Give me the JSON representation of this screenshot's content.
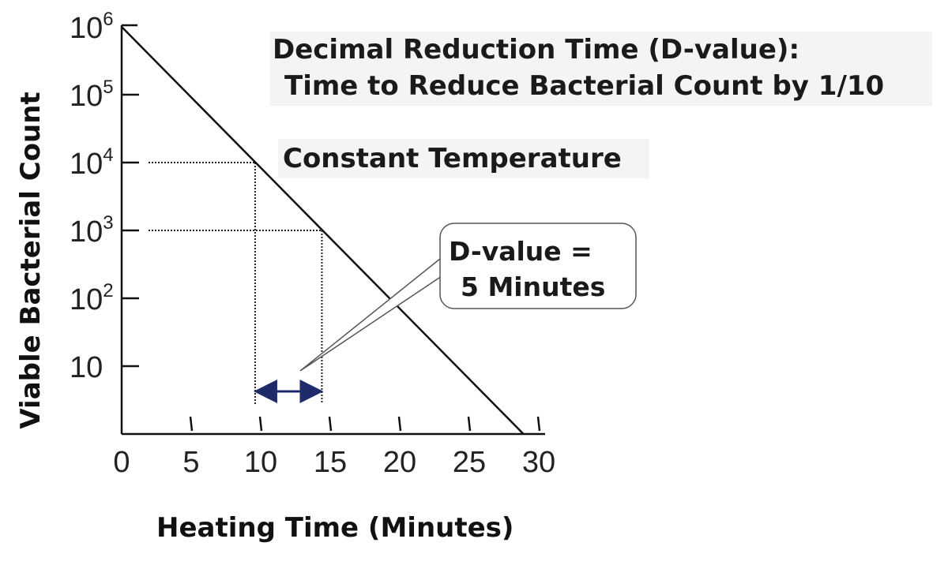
{
  "chart_data": {
    "type": "line",
    "title_line1": "Decimal Reduction Time (D-value):",
    "title_line2": "Time to Reduce Bacterial Count by 1/10",
    "subtitle": "Constant Temperature",
    "xlabel": "Heating Time (Minutes)",
    "ylabel": "Viable Bacterial Count",
    "x_ticks": [
      "0",
      "5",
      "10",
      "15",
      "20",
      "25",
      "30"
    ],
    "x_tick_values": [
      0,
      5,
      10,
      15,
      20,
      25,
      30
    ],
    "y_ticks": [
      {
        "value": 1,
        "base": "10",
        "exp": ""
      },
      {
        "value": 2,
        "base": "10",
        "exp": "2"
      },
      {
        "value": 3,
        "base": "10",
        "exp": "3"
      },
      {
        "value": 4,
        "base": "10",
        "exp": "4"
      },
      {
        "value": 5,
        "base": "10",
        "exp": "5"
      },
      {
        "value": 6,
        "base": "10",
        "exp": "6"
      }
    ],
    "y_scale": "log",
    "xlim": [
      0,
      30
    ],
    "ylim_log10": [
      0,
      6
    ],
    "series": [
      {
        "x": [
          0,
          28.9
        ],
        "log10_y": [
          6,
          0
        ]
      }
    ],
    "guide_points": [
      {
        "x": 9.6,
        "log10_y": 4
      },
      {
        "x": 14.4,
        "log10_y": 3
      }
    ],
    "callout": {
      "line1": "D-value =",
      "line2": "5 Minutes",
      "interval_x": [
        9.6,
        14.4
      ]
    },
    "colors": {
      "line": "#111111",
      "arrow": "#1f2a6b",
      "callout_border": "#555555"
    }
  }
}
